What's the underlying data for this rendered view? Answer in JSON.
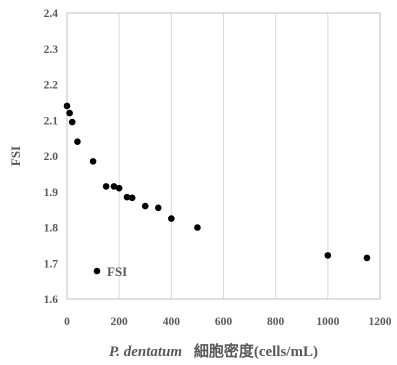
{
  "chart_data": {
    "type": "scatter",
    "xlabel_italic": "P. dentatum",
    "xlabel_rest": "細胞密度(cells/mL)",
    "ylabel": "FSI",
    "xlim": [
      0,
      1200
    ],
    "ylim": [
      1.6,
      2.4
    ],
    "x_ticks": [
      "0",
      "200",
      "400",
      "600",
      "800",
      "1000",
      "1200"
    ],
    "y_ticks": [
      "1.6",
      "1.7",
      "1.8",
      "1.9",
      "2.0",
      "2.1",
      "2.2",
      "2.3",
      "2.4"
    ],
    "grid": "vertical",
    "legend_position": "bottom-left",
    "marker_color": "#000000",
    "series": [
      {
        "name": "FSI",
        "points": [
          {
            "x": 0,
            "y": 2.14
          },
          {
            "x": 10,
            "y": 2.12
          },
          {
            "x": 20,
            "y": 2.095
          },
          {
            "x": 40,
            "y": 2.04
          },
          {
            "x": 100,
            "y": 1.985
          },
          {
            "x": 150,
            "y": 1.915
          },
          {
            "x": 180,
            "y": 1.915
          },
          {
            "x": 200,
            "y": 1.91
          },
          {
            "x": 230,
            "y": 1.885
          },
          {
            "x": 250,
            "y": 1.883
          },
          {
            "x": 300,
            "y": 1.86
          },
          {
            "x": 350,
            "y": 1.855
          },
          {
            "x": 400,
            "y": 1.825
          },
          {
            "x": 500,
            "y": 1.8
          },
          {
            "x": 1000,
            "y": 1.722
          },
          {
            "x": 1150,
            "y": 1.715
          }
        ]
      }
    ]
  }
}
